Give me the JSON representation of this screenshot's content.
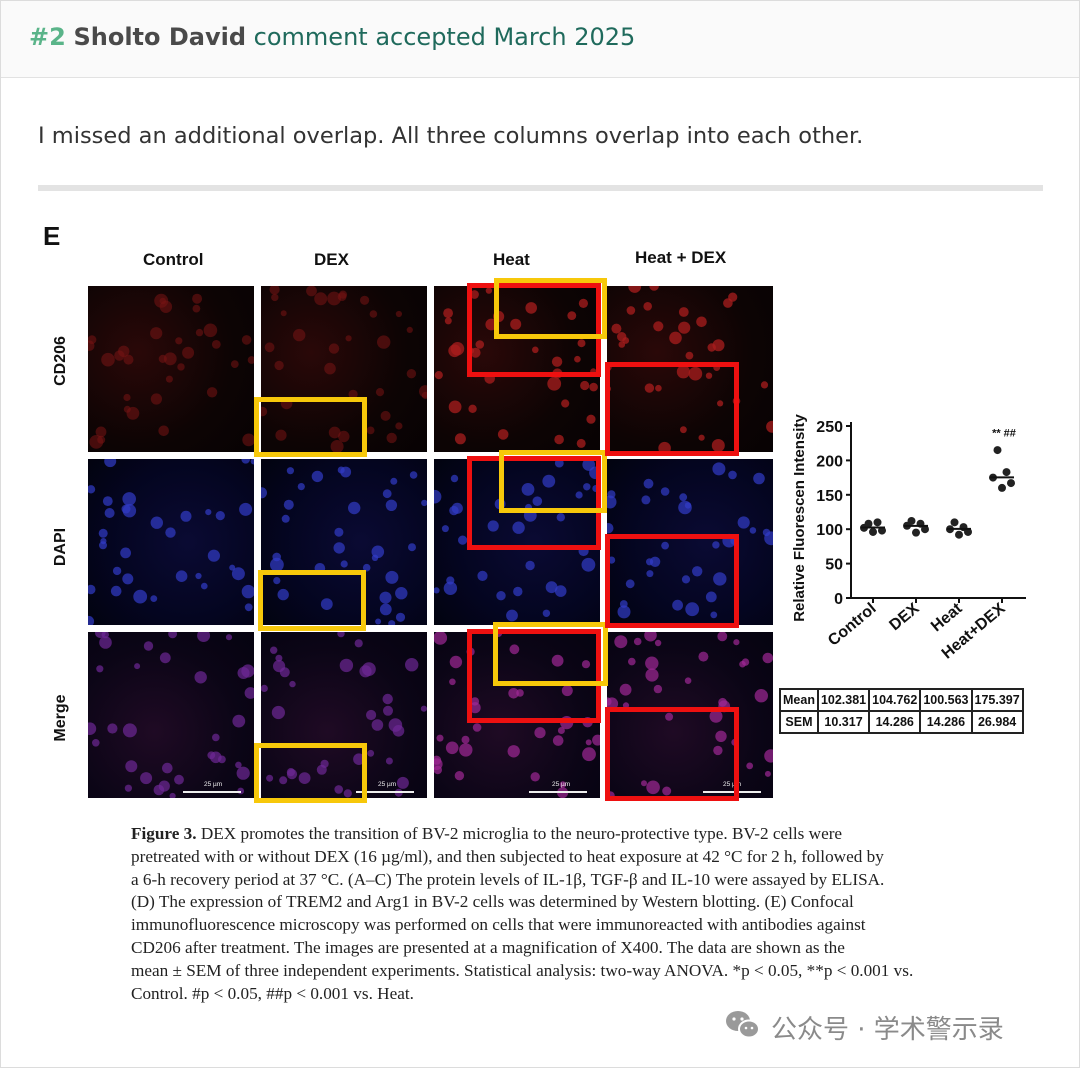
{
  "header": {
    "number": "#2",
    "author": "Sholto David",
    "status": "comment accepted March 2025"
  },
  "comment_text": "I missed an additional overlap. All three columns overlap into each other.",
  "figure": {
    "panel_letter": "E",
    "columns": [
      "Control",
      "DEX",
      "Heat",
      "Heat + DEX"
    ],
    "rows": [
      "CD206",
      "DAPI",
      "Merge"
    ],
    "scale_bar_label": "25 µm",
    "chart_data": {
      "type": "scatter",
      "ylabel": "Relative Fluorescen Intensity",
      "categories": [
        "Control",
        "DEX",
        "Heat",
        "Heat+DEX"
      ],
      "yticks": [
        0,
        50,
        100,
        150,
        200,
        250
      ],
      "ylim": [
        0,
        250
      ],
      "series": [
        {
          "values": [
            [
              102,
              108,
              96,
              110,
              98
            ],
            [
              105,
              112,
              95,
              108,
              100
            ],
            [
              100,
              110,
              92,
              103,
              96
            ],
            [
              175,
              215,
              160,
              183,
              167
            ]
          ]
        }
      ],
      "means": [
        102.381,
        104.762,
        100.563,
        175.397
      ],
      "significance": [
        {
          "category": "Heat+DEX",
          "label": "** ##"
        }
      ]
    },
    "table": {
      "rows": [
        {
          "label": "Mean",
          "values": [
            "102.381",
            "104.762",
            "100.563",
            "175.397"
          ]
        },
        {
          "label": "SEM",
          "values": [
            "10.317",
            "14.286",
            "14.286",
            "26.984"
          ]
        }
      ]
    },
    "caption": {
      "title": "Figure 3.",
      "lines": [
        "DEX promotes the transition of BV-2 microglia to the neuro-protective type. BV-2 cells were",
        "pretreated with or without DEX (16 µg/ml), and then subjected to heat exposure at 42 °C for 2 h, followed by",
        "a 6-h recovery period at 37 °C. (A–C) The protein levels of IL-1β, TGF-β and IL-10 were assayed by ELISA.",
        "(D) The expression of TREM2 and Arg1 in BV-2 cells was determined by Western blotting. (E) Confocal",
        "immunofluorescence microscopy was performed on cells that were immunoreacted with antibodies against",
        "CD206 after treatment. The images are presented at a magnification of X400. The data are shown as the",
        "mean ± SEM of three independent experiments. Statistical analysis: two-way ANOVA. *p < 0.05, **p < 0.001 vs.",
        "Control. #p < 0.05, ##p < 0.001 vs. Heat."
      ]
    },
    "highlight_colors": {
      "yellow": "#f7c80a",
      "red": "#ee1010"
    }
  },
  "watermark": "公众号 · 学术警示录"
}
